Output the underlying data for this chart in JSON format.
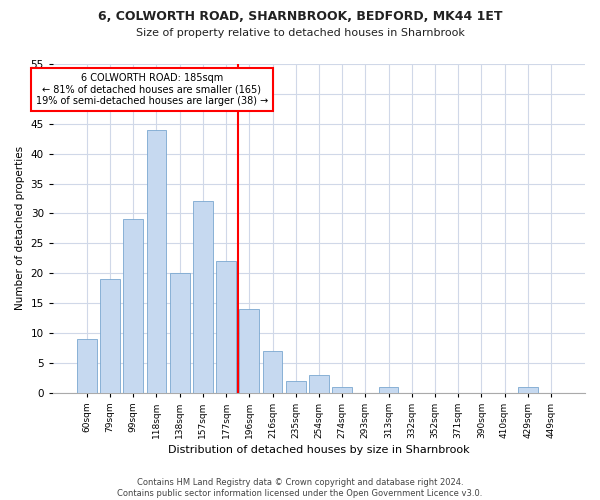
{
  "title1": "6, COLWORTH ROAD, SHARNBROOK, BEDFORD, MK44 1ET",
  "title2": "Size of property relative to detached houses in Sharnbrook",
  "xlabel": "Distribution of detached houses by size in Sharnbrook",
  "ylabel": "Number of detached properties",
  "categories": [
    "60sqm",
    "79sqm",
    "99sqm",
    "118sqm",
    "138sqm",
    "157sqm",
    "177sqm",
    "196sqm",
    "216sqm",
    "235sqm",
    "254sqm",
    "274sqm",
    "293sqm",
    "313sqm",
    "332sqm",
    "352sqm",
    "371sqm",
    "390sqm",
    "410sqm",
    "429sqm",
    "449sqm"
  ],
  "values": [
    9,
    19,
    29,
    44,
    20,
    32,
    22,
    14,
    7,
    2,
    3,
    1,
    0,
    1,
    0,
    0,
    0,
    0,
    0,
    1,
    0
  ],
  "bar_color": "#c6d9f0",
  "bar_edge_color": "#7aa8d0",
  "vline_color": "red",
  "ylim": [
    0,
    55
  ],
  "yticks": [
    0,
    5,
    10,
    15,
    20,
    25,
    30,
    35,
    40,
    45,
    50,
    55
  ],
  "annotation_title": "6 COLWORTH ROAD: 185sqm",
  "annotation_line1": "← 81% of detached houses are smaller (165)",
  "annotation_line2": "19% of semi-detached houses are larger (38) →",
  "annotation_box_color": "white",
  "annotation_box_edge": "red",
  "footer1": "Contains HM Land Registry data © Crown copyright and database right 2024.",
  "footer2": "Contains public sector information licensed under the Open Government Licence v3.0.",
  "bg_color": "#ffffff",
  "plot_bg_color": "#ffffff",
  "grid_color": "#d0d8e8"
}
